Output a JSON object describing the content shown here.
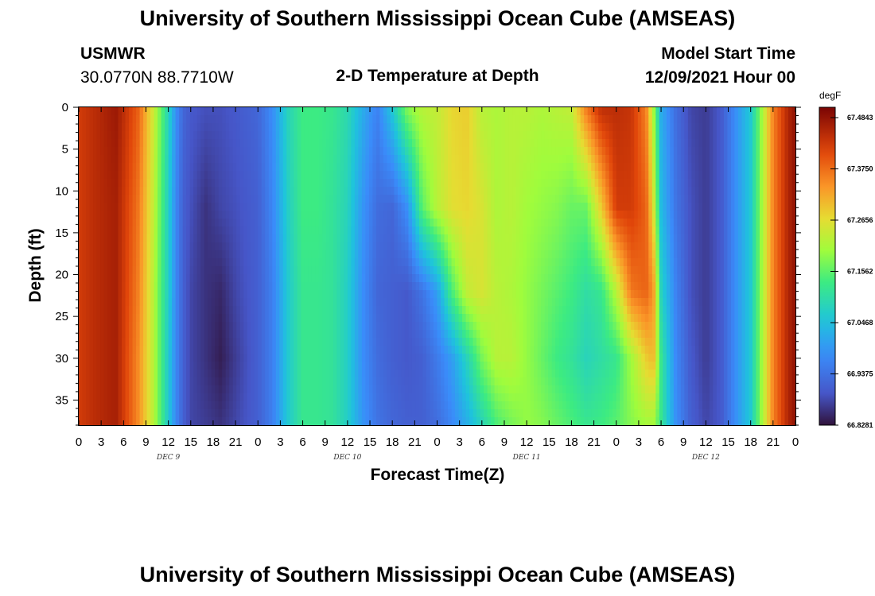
{
  "header": {
    "title": "University of Southern Mississippi Ocean Cube (AMSEAS)",
    "station": "USMWR",
    "coords": "30.0770N  88.7710W",
    "plot_title": "2-D Temperature at Depth",
    "model_start_label": "Model Start Time",
    "model_start_value": "12/09/2021 Hour 00"
  },
  "footer": {
    "title": "University of Southern Mississippi Ocean Cube (AMSEAS)"
  },
  "chart_data": {
    "type": "heatmap",
    "title": "2-D Temperature at Depth",
    "xlabel": "Forecast Time(Z)",
    "ylabel": "Depth (ft)",
    "x_range_hours": [
      0,
      96
    ],
    "x_tick_labels": [
      "0",
      "3",
      "6",
      "9",
      "12",
      "15",
      "18",
      "21",
      "0",
      "3",
      "6",
      "9",
      "12",
      "15",
      "18",
      "21",
      "0",
      "3",
      "6",
      "9",
      "12",
      "15",
      "18",
      "21",
      "0",
      "3",
      "6",
      "9",
      "12",
      "15",
      "18",
      "21",
      "0"
    ],
    "day_labels": [
      {
        "label": "DEC 9",
        "center_hour": 12
      },
      {
        "label": "DEC 10",
        "center_hour": 36
      },
      {
        "label": "DEC 11",
        "center_hour": 60
      },
      {
        "label": "DEC 12",
        "center_hour": 84
      }
    ],
    "y_ticks": [
      0,
      5,
      10,
      15,
      20,
      25,
      30,
      35
    ],
    "y_range": [
      0,
      38
    ],
    "colorbar": {
      "unit": "degF",
      "min": 66.8281,
      "max": 67.5,
      "labels": [
        "67.4843",
        "67.3750",
        "67.2656",
        "67.1562",
        "67.0468",
        "66.9375",
        "66.8281"
      ]
    },
    "depth_levels_ft": [
      0,
      12,
      22,
      30,
      38
    ],
    "time_hours": [
      0,
      2,
      5,
      8,
      10,
      11,
      12,
      13,
      14,
      15,
      17,
      19,
      21,
      24,
      26,
      28,
      30,
      32,
      34,
      36,
      38,
      40,
      42,
      44,
      46,
      48,
      50,
      52,
      54,
      56,
      58,
      60,
      62,
      64,
      66,
      68,
      70,
      72,
      74,
      76,
      77,
      78,
      80,
      82,
      84,
      86,
      88,
      90,
      91,
      92,
      93,
      95,
      96
    ],
    "temperature_degF": [
      [
        67.42,
        67.44,
        67.47,
        67.38,
        67.24,
        67.16,
        67.08,
        66.98,
        66.92,
        66.9,
        66.89,
        66.89,
        66.9,
        66.92,
        66.98,
        67.08,
        67.13,
        67.13,
        67.12,
        67.09,
        67.02,
        66.96,
        67.06,
        67.18,
        67.22,
        67.23,
        67.27,
        67.28,
        67.22,
        67.21,
        67.22,
        67.22,
        67.21,
        67.22,
        67.23,
        67.36,
        67.44,
        67.44,
        67.43,
        67.35,
        67.2,
        67.02,
        66.93,
        66.88,
        66.87,
        66.9,
        66.98,
        67.06,
        67.15,
        67.25,
        67.35,
        67.45,
        67.48
      ],
      [
        67.42,
        67.44,
        67.46,
        67.36,
        67.23,
        67.15,
        67.07,
        66.97,
        66.91,
        66.89,
        66.86,
        66.88,
        66.89,
        66.91,
        66.97,
        67.07,
        67.13,
        67.13,
        67.11,
        67.08,
        66.99,
        66.93,
        66.92,
        66.98,
        67.15,
        67.22,
        67.26,
        67.27,
        67.25,
        67.21,
        67.22,
        67.2,
        67.19,
        67.18,
        67.16,
        67.16,
        67.28,
        67.42,
        67.42,
        67.38,
        67.25,
        67.04,
        66.94,
        66.89,
        66.87,
        66.9,
        66.98,
        67.06,
        67.15,
        67.25,
        67.35,
        67.45,
        67.48
      ],
      [
        67.42,
        67.44,
        67.46,
        67.35,
        67.22,
        67.14,
        67.07,
        66.97,
        66.91,
        66.88,
        66.86,
        66.85,
        66.88,
        66.91,
        66.96,
        67.06,
        67.12,
        67.12,
        67.11,
        67.07,
        66.98,
        66.92,
        66.91,
        66.9,
        66.94,
        67.0,
        67.14,
        67.23,
        67.25,
        67.22,
        67.21,
        67.19,
        67.17,
        67.15,
        67.13,
        67.1,
        67.12,
        67.22,
        67.36,
        67.38,
        67.33,
        67.08,
        66.96,
        66.89,
        66.87,
        66.9,
        66.98,
        67.06,
        67.15,
        67.25,
        67.35,
        67.45,
        67.48
      ],
      [
        67.42,
        67.44,
        67.46,
        67.34,
        67.22,
        67.14,
        67.06,
        66.97,
        66.91,
        66.88,
        66.86,
        66.84,
        66.87,
        66.91,
        66.96,
        67.06,
        67.12,
        67.12,
        67.11,
        67.07,
        66.98,
        66.93,
        66.91,
        66.9,
        66.91,
        66.95,
        67.0,
        67.08,
        67.17,
        67.22,
        67.22,
        67.19,
        67.16,
        67.13,
        67.11,
        67.08,
        67.1,
        67.12,
        67.2,
        67.28,
        67.3,
        67.12,
        66.97,
        66.9,
        66.87,
        66.9,
        66.98,
        67.06,
        67.15,
        67.25,
        67.35,
        67.45,
        67.48
      ],
      [
        67.42,
        67.44,
        67.46,
        67.34,
        67.22,
        67.14,
        67.06,
        66.97,
        66.91,
        66.88,
        66.87,
        66.86,
        66.88,
        66.91,
        66.96,
        67.06,
        67.12,
        67.12,
        67.11,
        67.07,
        66.99,
        66.94,
        66.92,
        66.91,
        66.91,
        66.93,
        66.97,
        67.02,
        67.08,
        67.14,
        67.17,
        67.19,
        67.18,
        67.16,
        67.14,
        67.12,
        67.13,
        67.15,
        67.18,
        67.2,
        67.2,
        67.12,
        66.98,
        66.91,
        66.88,
        66.9,
        66.98,
        67.06,
        67.15,
        67.25,
        67.35,
        67.45,
        67.48
      ]
    ]
  }
}
